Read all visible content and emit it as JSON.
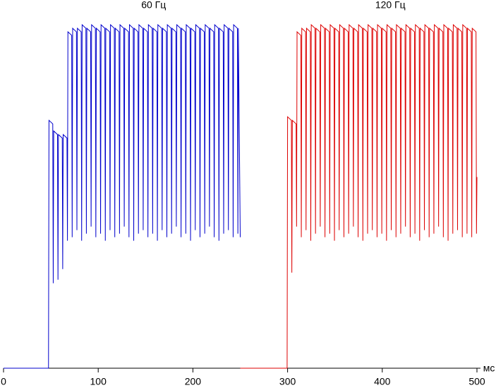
{
  "chart_data": {
    "type": "line",
    "x_label": "мс",
    "xlim": [
      0,
      500
    ],
    "xticks": [
      0,
      100,
      200,
      300,
      400,
      500
    ],
    "ylim": [
      0,
      100
    ],
    "series": [
      {
        "name": "60 Гц",
        "color": "#0000cc",
        "x": [
          0,
          47.5,
          48,
          52,
          52.5,
          53,
          57,
          57.5,
          58,
          62,
          62.5,
          63,
          67,
          67.5,
          68,
          72,
          72.5,
          73,
          77,
          77.5,
          78,
          82,
          82.5,
          83,
          87,
          87.5,
          88,
          92,
          92.5,
          93,
          97,
          97.5,
          98,
          102,
          102.5,
          103,
          107,
          107.5,
          108,
          112,
          112.5,
          113,
          117,
          117.5,
          118,
          122,
          122.5,
          123,
          127,
          127.5,
          128,
          132,
          132.5,
          133,
          137,
          137.5,
          138,
          142,
          142.5,
          143,
          147,
          147.5,
          148,
          152,
          152.5,
          153,
          157,
          157.5,
          158,
          162,
          162.5,
          163,
          167,
          167.5,
          168,
          172,
          172.5,
          173,
          177,
          177.5,
          178,
          182,
          182.5,
          183,
          187,
          187.5,
          188,
          192,
          192.5,
          193,
          197,
          197.5,
          198,
          202,
          202.5,
          203,
          207,
          207.5,
          208,
          212,
          212.5,
          213,
          217,
          217.5,
          218,
          222,
          222.5,
          223,
          227,
          227.5,
          228,
          232,
          232.5,
          233,
          237,
          237.5,
          238,
          242,
          242.5,
          243,
          247,
          247.5,
          248,
          250
        ],
        "values": [
          0,
          0,
          70,
          69,
          24,
          67,
          66,
          25,
          66,
          65,
          28,
          66,
          65,
          36,
          95,
          94,
          37,
          96,
          95,
          39,
          96,
          95,
          36,
          97,
          96,
          38,
          96,
          95,
          40,
          97,
          96,
          37,
          96,
          95,
          38,
          97,
          96,
          36,
          96,
          95,
          39,
          97,
          96,
          37,
          96,
          95,
          38,
          97,
          96,
          40,
          96,
          95,
          37,
          97,
          96,
          36,
          96,
          95,
          38,
          97,
          96,
          39,
          96,
          95,
          37,
          97,
          96,
          38,
          96,
          95,
          36,
          97,
          96,
          39,
          96,
          95,
          37,
          97,
          96,
          38,
          96,
          95,
          40,
          97,
          96,
          37,
          96,
          95,
          38,
          97,
          96,
          36,
          96,
          95,
          39,
          97,
          96,
          37,
          96,
          95,
          38,
          97,
          96,
          40,
          96,
          95,
          37,
          97,
          96,
          36,
          96,
          95,
          38,
          97,
          96,
          39,
          96,
          95,
          37,
          97,
          96,
          38,
          96,
          37
        ]
      },
      {
        "name": "120 Гц",
        "color": "#dd0000",
        "x": [
          250,
          299.5,
          300,
          304,
          304.5,
          305,
          309,
          309.5,
          310,
          314,
          314.5,
          315,
          319,
          319.5,
          320,
          324,
          324.5,
          325,
          329,
          329.5,
          330,
          334,
          334.5,
          335,
          339,
          339.5,
          340,
          344,
          344.5,
          345,
          349,
          349.5,
          350,
          354,
          354.5,
          355,
          359,
          359.5,
          360,
          364,
          364.5,
          365,
          369,
          369.5,
          370,
          374,
          374.5,
          375,
          379,
          379.5,
          380,
          384,
          384.5,
          385,
          389,
          389.5,
          390,
          394,
          394.5,
          395,
          399,
          399.5,
          400,
          404,
          404.5,
          405,
          409,
          409.5,
          410,
          414,
          414.5,
          415,
          419,
          419.5,
          420,
          424,
          424.5,
          425,
          429,
          429.5,
          430,
          434,
          434.5,
          435,
          439,
          439.5,
          440,
          444,
          444.5,
          445,
          449,
          449.5,
          450,
          454,
          454.5,
          455,
          459,
          459.5,
          460,
          464,
          464.5,
          465,
          469,
          469.5,
          470,
          474,
          474.5,
          475,
          479,
          479.5,
          480,
          484,
          484.5,
          485,
          489,
          489.5,
          490,
          494,
          494.5,
          495,
          499,
          499.5,
          500
        ],
        "values": [
          0,
          0,
          71,
          70,
          27,
          70,
          69,
          40,
          95,
          94,
          37,
          96,
          95,
          39,
          96,
          95,
          36,
          97,
          96,
          38,
          96,
          95,
          40,
          97,
          96,
          37,
          96,
          95,
          38,
          97,
          96,
          36,
          96,
          95,
          39,
          97,
          96,
          37,
          96,
          95,
          38,
          97,
          96,
          40,
          96,
          95,
          37,
          97,
          96,
          36,
          96,
          95,
          38,
          97,
          96,
          39,
          96,
          95,
          37,
          97,
          96,
          38,
          96,
          95,
          36,
          97,
          96,
          39,
          96,
          95,
          37,
          97,
          96,
          38,
          96,
          95,
          40,
          97,
          96,
          37,
          96,
          95,
          38,
          97,
          96,
          36,
          96,
          95,
          39,
          97,
          96,
          37,
          96,
          95,
          38,
          97,
          96,
          40,
          96,
          95,
          37,
          97,
          96,
          36,
          96,
          95,
          38,
          97,
          96,
          39,
          96,
          95,
          37,
          97,
          96,
          38,
          96,
          95,
          37,
          96,
          95,
          38,
          54
        ]
      }
    ]
  }
}
